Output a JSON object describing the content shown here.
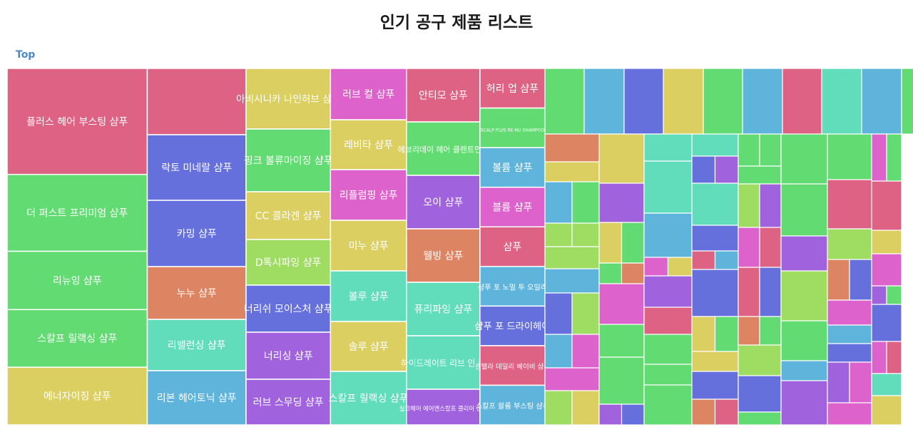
{
  "chart_data": {
    "type": "treemap",
    "title": "인기 공구 제품 리스트",
    "breadcrumb": "Top",
    "colors": [
      "#dd6283",
      "#6570dc",
      "#dccf62",
      "#dd62cc",
      "#62dc72",
      "#5fb4dc",
      "#dd8562",
      "#a062dd",
      "#62ddbb",
      "#9fdc62"
    ],
    "columns": [
      {
        "weight": 16.6,
        "items": [
          {
            "label": "플러스 헤어 부스팅 샴푸",
            "value": 14.9,
            "color": 0
          },
          {
            "label": "더 퍼스트 프리미엄 샴푸",
            "value": 10.8,
            "color": 4
          },
          {
            "label": "리뉴잉 샴푸",
            "value": 8.2,
            "color": 4
          },
          {
            "label": "스칼프 릴랙싱 샴푸",
            "value": 8.1,
            "color": 4
          },
          {
            "label": "에너자이징 샴푸",
            "value": 8.1,
            "color": 2
          }
        ]
      },
      {
        "weight": 11.7,
        "items": [
          {
            "label": "",
            "value": 9.3,
            "color": 0
          },
          {
            "label": "락토 미네랄 샴푸",
            "value": 9.2,
            "color": 1
          },
          {
            "label": "카밍 샴푸",
            "value": 9.3,
            "color": 1
          },
          {
            "label": "누누 샴푸",
            "value": 7.4,
            "color": 6
          },
          {
            "label": "리밸런싱 샴푸",
            "value": 7.2,
            "color": 8
          },
          {
            "label": "리본 헤어토닉 샴푸",
            "value": 7.6,
            "color": 5
          }
        ]
      },
      {
        "weight": 10.0,
        "items": [
          {
            "label": "아비시니카 나인허브 샴푸",
            "value": 8.5,
            "color": 2
          },
          {
            "label": "핑크 볼류마이징 샴푸",
            "value": 8.8,
            "color": 4
          },
          {
            "label": "CC 콜라겐 샴푸",
            "value": 6.7,
            "color": 2
          },
          {
            "label": "D톡시파잉 샴푸",
            "value": 6.4,
            "color": 9
          },
          {
            "label": "너리쉬 모이스처 샴푸",
            "value": 6.6,
            "color": 1
          },
          {
            "label": "너리싱 샴푸",
            "value": 6.6,
            "color": 7
          },
          {
            "label": "러브 스무딩 샴푸",
            "value": 6.4,
            "color": 7
          }
        ]
      },
      {
        "weight": 9.0,
        "items": [
          {
            "label": "러브 컬 샴푸",
            "value": 7.2,
            "color": 3
          },
          {
            "label": "레비타 샴푸",
            "value": 7.0,
            "color": 2
          },
          {
            "label": "리플럼핑 샴푸",
            "value": 7.1,
            "color": 3
          },
          {
            "label": "미누 샴푸",
            "value": 7.1,
            "color": 2
          },
          {
            "label": "볼루 샴푸",
            "value": 7.1,
            "color": 8
          },
          {
            "label": "솔루 샴푸",
            "value": 7.0,
            "color": 2
          },
          {
            "label": "스칼프 릴랙싱 샴푸",
            "value": 7.5,
            "color": 8
          }
        ]
      },
      {
        "weight": 8.7,
        "items": [
          {
            "label": "안티모 샴푸",
            "value": 7.5,
            "color": 0
          },
          {
            "label": "에브리데이 헤어 클렌트먼트",
            "value": 7.5,
            "color": 4
          },
          {
            "label": "오이 샴푸",
            "value": 7.5,
            "color": 7
          },
          {
            "label": "웰빙 샴푸",
            "value": 7.5,
            "color": 6
          },
          {
            "label": "퓨리파잉 샴푸",
            "value": 7.5,
            "color": 8
          },
          {
            "label": "하이드레이트 리브 인 폼",
            "value": 7.5,
            "color": 8
          },
          {
            "label": "실크헤어 에어엔스칼프 클리어 샴푸",
            "value": 5.0,
            "color": 7
          }
        ]
      },
      {
        "weight": 7.7,
        "items": [
          {
            "label": "허리 업 샴푸",
            "value": 5.5,
            "color": 0
          },
          {
            "label": "SCALP PLUS RE-NU SHAMPOO",
            "value": 5.5,
            "color": 4
          },
          {
            "label": "볼륨 샴푸",
            "value": 5.5,
            "color": 5
          },
          {
            "label": "블륨 샴푸",
            "value": 5.5,
            "color": 3
          },
          {
            "label": "샴푸",
            "value": 5.5,
            "color": 0
          },
          {
            "label": "샴푸 포 노멀 투 오일리",
            "value": 5.5,
            "color": 5
          },
          {
            "label": "샴푸 포 드라이헤어",
            "value": 5.5,
            "color": 1
          },
          {
            "label": "센텔라 데일리 베이비 샴푸",
            "value": 5.5,
            "color": 0
          },
          {
            "label": "스칼프 블륨 부스팅 샴푸",
            "value": 5.5,
            "color": 5
          }
        ]
      }
    ]
  }
}
